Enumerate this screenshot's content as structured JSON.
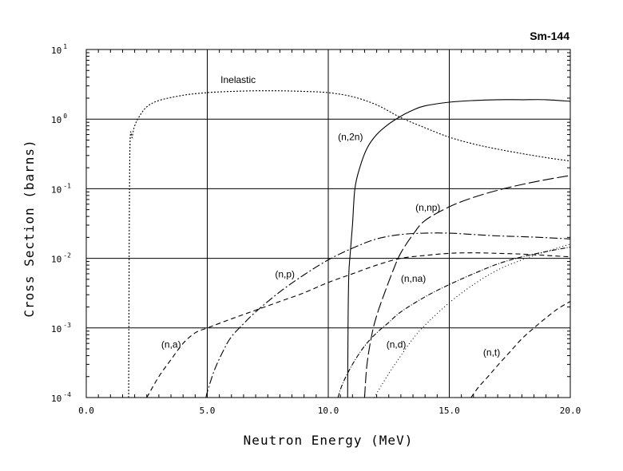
{
  "chart_data": {
    "type": "line",
    "title": "Sm-144",
    "xlabel": "Neutron Energy (MeV)",
    "ylabel": "Cross Section (barns)",
    "xscale": "linear",
    "yscale": "log",
    "xlim": [
      0,
      20
    ],
    "ylim": [
      0.0001,
      10
    ],
    "xticks": [
      0,
      5,
      10,
      15,
      20
    ],
    "xtick_labels": [
      "0.0",
      "5.0",
      "10.0",
      "15.0",
      "20.0"
    ],
    "yticks": [
      0.0001,
      0.001,
      0.01,
      0.1,
      1,
      10
    ],
    "ytick_labels": [
      {
        "base": "10",
        "exp": "-4"
      },
      {
        "base": "10",
        "exp": "-3"
      },
      {
        "base": "10",
        "exp": "-2"
      },
      {
        "base": "10",
        "exp": "-1"
      },
      {
        "base": "10",
        "exp": "0"
      },
      {
        "base": "10",
        "exp": "1"
      }
    ],
    "grid": true,
    "series": [
      {
        "name": "Inelastic",
        "label": "Inelastic",
        "dash": "2,2",
        "x": [
          1.75,
          1.8,
          1.9,
          2.0,
          2.2,
          2.5,
          3.0,
          4.0,
          5.0,
          6.0,
          7.0,
          8.0,
          9.0,
          10.0,
          11.0,
          12.0,
          13.0,
          14.0,
          15.0,
          16.0,
          17.0,
          18.0,
          19.0,
          20.0
        ],
        "y": [
          0.0001,
          0.3,
          0.55,
          0.8,
          1.1,
          1.5,
          1.85,
          2.2,
          2.4,
          2.5,
          2.55,
          2.55,
          2.5,
          2.4,
          2.1,
          1.6,
          1.05,
          0.75,
          0.55,
          0.44,
          0.37,
          0.32,
          0.28,
          0.25
        ]
      },
      {
        "name": "(n,2n)",
        "label": "(n,2n)",
        "dash": "",
        "x": [
          10.8,
          10.82,
          10.85,
          10.9,
          11.0,
          11.1,
          11.3,
          11.6,
          12.0,
          12.5,
          13.0,
          13.5,
          14.0,
          15.0,
          16.0,
          17.0,
          18.0,
          19.0,
          20.0
        ],
        "y": [
          0.0001,
          0.0015,
          0.006,
          0.011,
          0.03,
          0.1,
          0.2,
          0.38,
          0.6,
          0.85,
          1.1,
          1.35,
          1.55,
          1.75,
          1.85,
          1.9,
          1.9,
          1.9,
          1.8
        ]
      },
      {
        "name": "(n,p)",
        "label": "(n,p)",
        "dash": "10,3,2,3",
        "x": [
          4.95,
          5.0,
          5.3,
          5.7,
          6.0,
          6.5,
          7.0,
          8.0,
          9.0,
          10.0,
          11.0,
          12.0,
          13.0,
          14.0,
          15.0,
          16.0,
          17.0,
          18.0,
          19.0,
          20.0
        ],
        "y": [
          0.0001,
          0.00012,
          0.00025,
          0.0005,
          0.00075,
          0.00115,
          0.0017,
          0.0033,
          0.0058,
          0.0095,
          0.014,
          0.019,
          0.022,
          0.023,
          0.023,
          0.022,
          0.021,
          0.0205,
          0.0198,
          0.019
        ]
      },
      {
        "name": "(n,a)",
        "label": "(n,a)",
        "dash": "6,4",
        "x": [
          2.5,
          3.0,
          3.5,
          4.0,
          4.5,
          5.0,
          6.0,
          7.0,
          8.0,
          9.0,
          10.0,
          11.0,
          12.0,
          13.0,
          14.0,
          15.0,
          16.0,
          17.0,
          18.0,
          19.0,
          20.0
        ],
        "y": [
          0.0001,
          0.0002,
          0.00035,
          0.0006,
          0.00085,
          0.001,
          0.00135,
          0.0018,
          0.0024,
          0.0032,
          0.0045,
          0.006,
          0.008,
          0.01,
          0.011,
          0.0118,
          0.012,
          0.0118,
          0.0115,
          0.011,
          0.0105
        ]
      },
      {
        "name": "(n,np)",
        "label": "(n,np)",
        "dash": "14,4",
        "x": [
          11.5,
          11.6,
          11.8,
          12.0,
          12.3,
          12.7,
          13.0,
          13.5,
          14.0,
          15.0,
          16.0,
          17.0,
          18.0,
          19.0,
          20.0
        ],
        "y": [
          0.0001,
          0.0003,
          0.0008,
          0.0015,
          0.003,
          0.007,
          0.012,
          0.022,
          0.035,
          0.055,
          0.075,
          0.095,
          0.115,
          0.135,
          0.155
        ]
      },
      {
        "name": "(n,na)",
        "label": "(n,na)",
        "dash": "6,2,1,2",
        "x": [
          10.4,
          10.6,
          11.0,
          11.5,
          12.0,
          12.5,
          13.0,
          14.0,
          15.0,
          16.0,
          17.0,
          18.0,
          19.0,
          20.0
        ],
        "y": [
          0.0001,
          0.00016,
          0.0003,
          0.00055,
          0.00085,
          0.0012,
          0.0017,
          0.0028,
          0.0042,
          0.006,
          0.0083,
          0.0105,
          0.0125,
          0.0145
        ]
      },
      {
        "name": "(n,d)",
        "label": "(n,d)",
        "dash": "1,3",
        "x": [
          11.9,
          12.2,
          12.6,
          13.0,
          13.5,
          14.0,
          15.0,
          16.0,
          17.0,
          18.0,
          19.0,
          20.0
        ],
        "y": [
          0.0001,
          0.00015,
          0.00025,
          0.0004,
          0.0007,
          0.0011,
          0.0023,
          0.0042,
          0.0068,
          0.0095,
          0.0125,
          0.016
        ]
      },
      {
        "name": "(n,t)",
        "label": "(n,t)",
        "dash": "6,4",
        "x": [
          15.9,
          16.2,
          16.6,
          17.0,
          17.5,
          18.0,
          18.5,
          19.0,
          19.5,
          20.0
        ],
        "y": [
          0.0001,
          0.00014,
          0.0002,
          0.00029,
          0.00045,
          0.0007,
          0.001,
          0.0014,
          0.0019,
          0.0024
        ]
      }
    ],
    "annotations": [
      {
        "text": "Inelastic",
        "x": 5.55,
        "y": 3.3
      },
      {
        "text": "(n,2n)",
        "x": 10.4,
        "y": 0.5
      },
      {
        "text": "(n,np)",
        "x": 13.6,
        "y": 0.048
      },
      {
        "text": "(n,p)",
        "x": 7.8,
        "y": 0.0053
      },
      {
        "text": "(n,na)",
        "x": 13.0,
        "y": 0.0046
      },
      {
        "text": "(n,a)",
        "x": 3.1,
        "y": 0.00052
      },
      {
        "text": "(n,d)",
        "x": 12.4,
        "y": 0.00052
      },
      {
        "text": "(n,t)",
        "x": 16.4,
        "y": 0.0004
      }
    ]
  }
}
